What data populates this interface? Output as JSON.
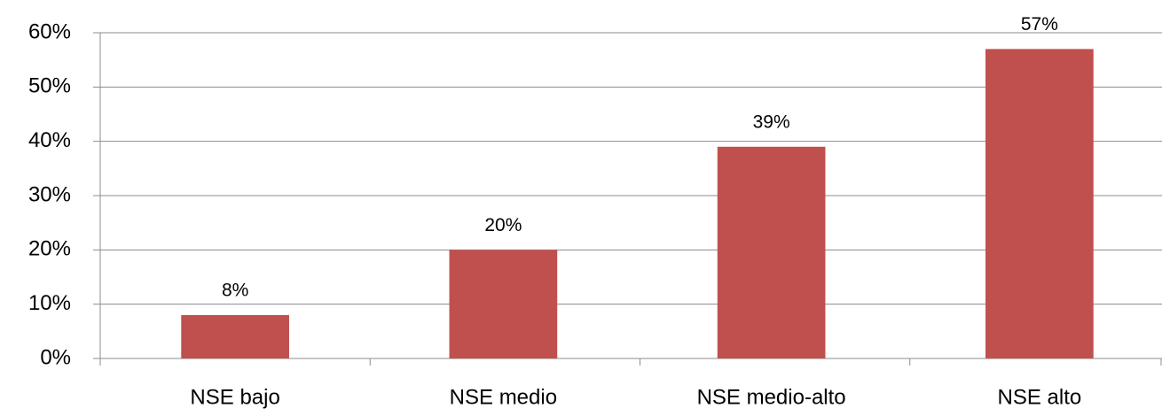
{
  "chart_data": {
    "type": "bar",
    "categories": [
      "NSE bajo",
      "NSE medio",
      "NSE medio-alto",
      "NSE alto"
    ],
    "values": [
      8,
      20,
      39,
      57
    ],
    "value_labels": [
      "8%",
      "20%",
      "39%",
      "57%"
    ],
    "color": "#c0504d",
    "ylim": [
      0,
      60
    ],
    "yticks": [
      {
        "value": 0,
        "label": "0%"
      },
      {
        "value": 10,
        "label": "10%"
      },
      {
        "value": 20,
        "label": "20%"
      },
      {
        "value": 30,
        "label": "30%"
      },
      {
        "value": 40,
        "label": "40%"
      },
      {
        "value": 50,
        "label": "50%"
      },
      {
        "value": 60,
        "label": "60%"
      }
    ],
    "grid": true
  }
}
